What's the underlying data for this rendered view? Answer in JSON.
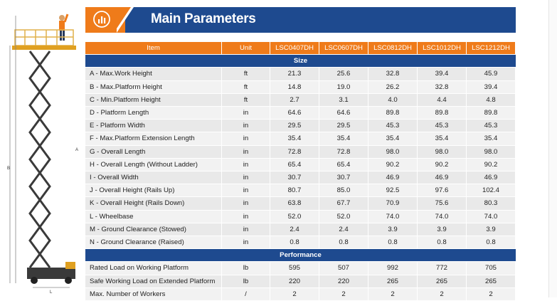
{
  "header": {
    "title": "Main Parameters",
    "icon": "bar-chart-icon",
    "accent": "#ef7b1a",
    "brand": "#1e4a8f"
  },
  "illustration": {
    "dim_a": "A",
    "dim_b": "B",
    "dim_l": "L"
  },
  "table": {
    "columns": [
      "Item",
      "Unit",
      "LSC0407DH",
      "LSC0607DH",
      "LSC0812DH",
      "LSC1012DH",
      "LSC1212DH"
    ],
    "sections": [
      {
        "title": "Size",
        "rows": [
          [
            "A - Max.Work Height",
            "ft",
            "21.3",
            "25.6",
            "32.8",
            "39.4",
            "45.9"
          ],
          [
            "B - Max.Platform Height",
            "ft",
            "14.8",
            "19.0",
            "26.2",
            "32.8",
            "39.4"
          ],
          [
            "C - Min.Platform Height",
            "ft",
            "2.7",
            "3.1",
            "4.0",
            "4.4",
            "4.8"
          ],
          [
            "D - Platform Length",
            "in",
            "64.6",
            "64.6",
            "89.8",
            "89.8",
            "89.8"
          ],
          [
            "E - Platform Width",
            "in",
            "29.5",
            "29.5",
            "45.3",
            "45.3",
            "45.3"
          ],
          [
            "F - Max.Platform Extension Length",
            "in",
            "35.4",
            "35.4",
            "35.4",
            "35.4",
            "35.4"
          ],
          [
            "G - Overall Length",
            "in",
            "72.8",
            "72.8",
            "98.0",
            "98.0",
            "98.0"
          ],
          [
            "H - Overall Length (Without Ladder)",
            "in",
            "65.4",
            "65.4",
            "90.2",
            "90.2",
            "90.2"
          ],
          [
            "I - Overall Width",
            "in",
            "30.7",
            "30.7",
            "46.9",
            "46.9",
            "46.9"
          ],
          [
            "J - Overall Height (Rails Up)",
            "in",
            "80.7",
            "85.0",
            "92.5",
            "97.6",
            "102.4"
          ],
          [
            "K - Overall Height (Rails Down)",
            "in",
            "63.8",
            "67.7",
            "70.9",
            "75.6",
            "80.3"
          ],
          [
            "L - Wheelbase",
            "in",
            "52.0",
            "52.0",
            "74.0",
            "74.0",
            "74.0"
          ],
          [
            "M - Ground Clearance (Stowed)",
            "in",
            "2.4",
            "2.4",
            "3.9",
            "3.9",
            "3.9"
          ],
          [
            "N - Ground Clearance (Raised)",
            "in",
            "0.8",
            "0.8",
            "0.8",
            "0.8",
            "0.8"
          ]
        ]
      },
      {
        "title": "Performance",
        "rows": [
          [
            "Rated Load on Working Platform",
            "lb",
            "595",
            "507",
            "992",
            "772",
            "705"
          ],
          [
            "Safe Working Load on Extended Platform",
            "lb",
            "220",
            "220",
            "265",
            "265",
            "265"
          ],
          [
            "Max. Number of Workers",
            "/",
            "2",
            "2",
            "2",
            "2",
            "2"
          ]
        ]
      }
    ]
  }
}
